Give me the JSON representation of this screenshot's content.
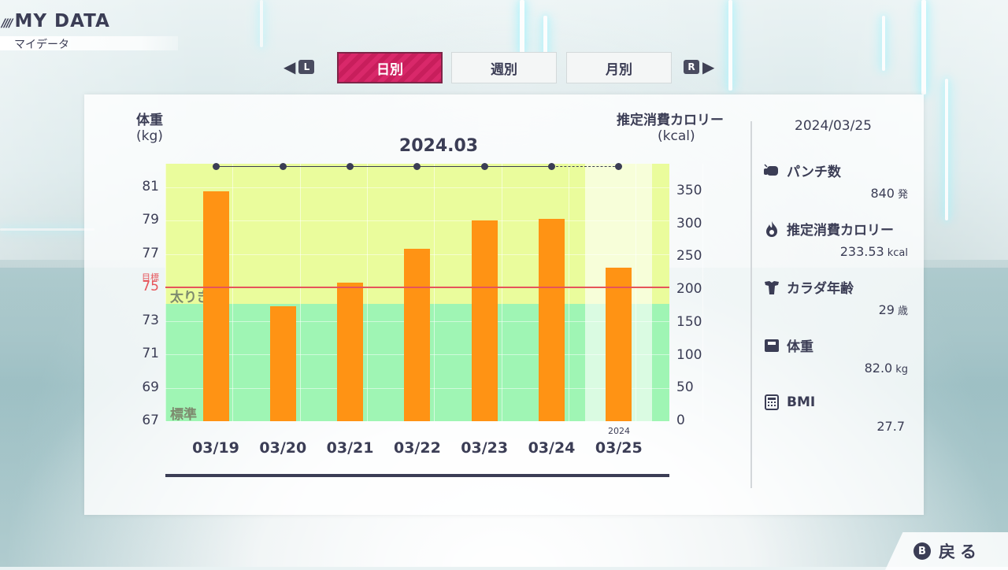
{
  "header": {
    "title": "MY DATA",
    "subtitle": "マイデータ"
  },
  "nav": {
    "left_key": "L",
    "right_key": "R"
  },
  "tabs": [
    {
      "label": "日別",
      "active": true
    },
    {
      "label": "週別",
      "active": false
    },
    {
      "label": "月別",
      "active": false
    }
  ],
  "chart": {
    "left_axis_label": "体重",
    "left_axis_unit": "(kg)",
    "right_axis_label": "推定消費カロリー",
    "right_axis_unit": "(kcal)",
    "month_label": "2024.03",
    "goal_label": "目標",
    "zone_labels": {
      "upper": "太りぎみ",
      "lower": "標準"
    },
    "today_year": "2024"
  },
  "chart_data": {
    "type": "bar",
    "title": "2024.03",
    "categories": [
      "03/19",
      "03/20",
      "03/21",
      "03/22",
      "03/23",
      "03/24",
      "03/25"
    ],
    "series": [
      {
        "name": "推定消費カロリー",
        "values": [
          350,
          175,
          211,
          263,
          306,
          308,
          233.53
        ]
      }
    ],
    "y_left": {
      "label": "体重",
      "unit": "(kg)",
      "ticks": [
        67,
        69,
        71,
        73,
        75,
        77,
        79,
        81
      ],
      "range": [
        67,
        82.4
      ]
    },
    "y_right": {
      "label": "推定消費カロリー",
      "unit": "(kcal)",
      "ticks": [
        0,
        50,
        100,
        150,
        200,
        250,
        300,
        350
      ],
      "range": [
        0,
        392
      ]
    },
    "goal_weight": 75,
    "zones": [
      {
        "name": "太りぎみ",
        "from": 74.0,
        "to": 82.4,
        "color": "#eafc9c"
      },
      {
        "name": "標準",
        "from": 67,
        "to": 74.0,
        "color": "#9ff5b4"
      }
    ],
    "bar_color": "#ff9314",
    "goal_color": "#e6545a",
    "highlight_category": "03/25"
  },
  "stats": {
    "date": "2024/03/25",
    "items": [
      {
        "icon": "punch-icon",
        "label": "パンチ数",
        "value": "840",
        "unit": "発"
      },
      {
        "icon": "flame-icon",
        "label": "推定消費カロリー",
        "value": "233.53",
        "unit": "kcal"
      },
      {
        "icon": "body-icon",
        "label": "カラダ年齢",
        "value": "29",
        "unit": "歳"
      },
      {
        "icon": "scale-icon",
        "label": "体重",
        "value": "82.0",
        "unit": "kg"
      },
      {
        "icon": "calculator-icon",
        "label": "BMI",
        "value": "27.7",
        "unit": ""
      }
    ]
  },
  "back_button": {
    "key": "B",
    "label": "戻る"
  }
}
